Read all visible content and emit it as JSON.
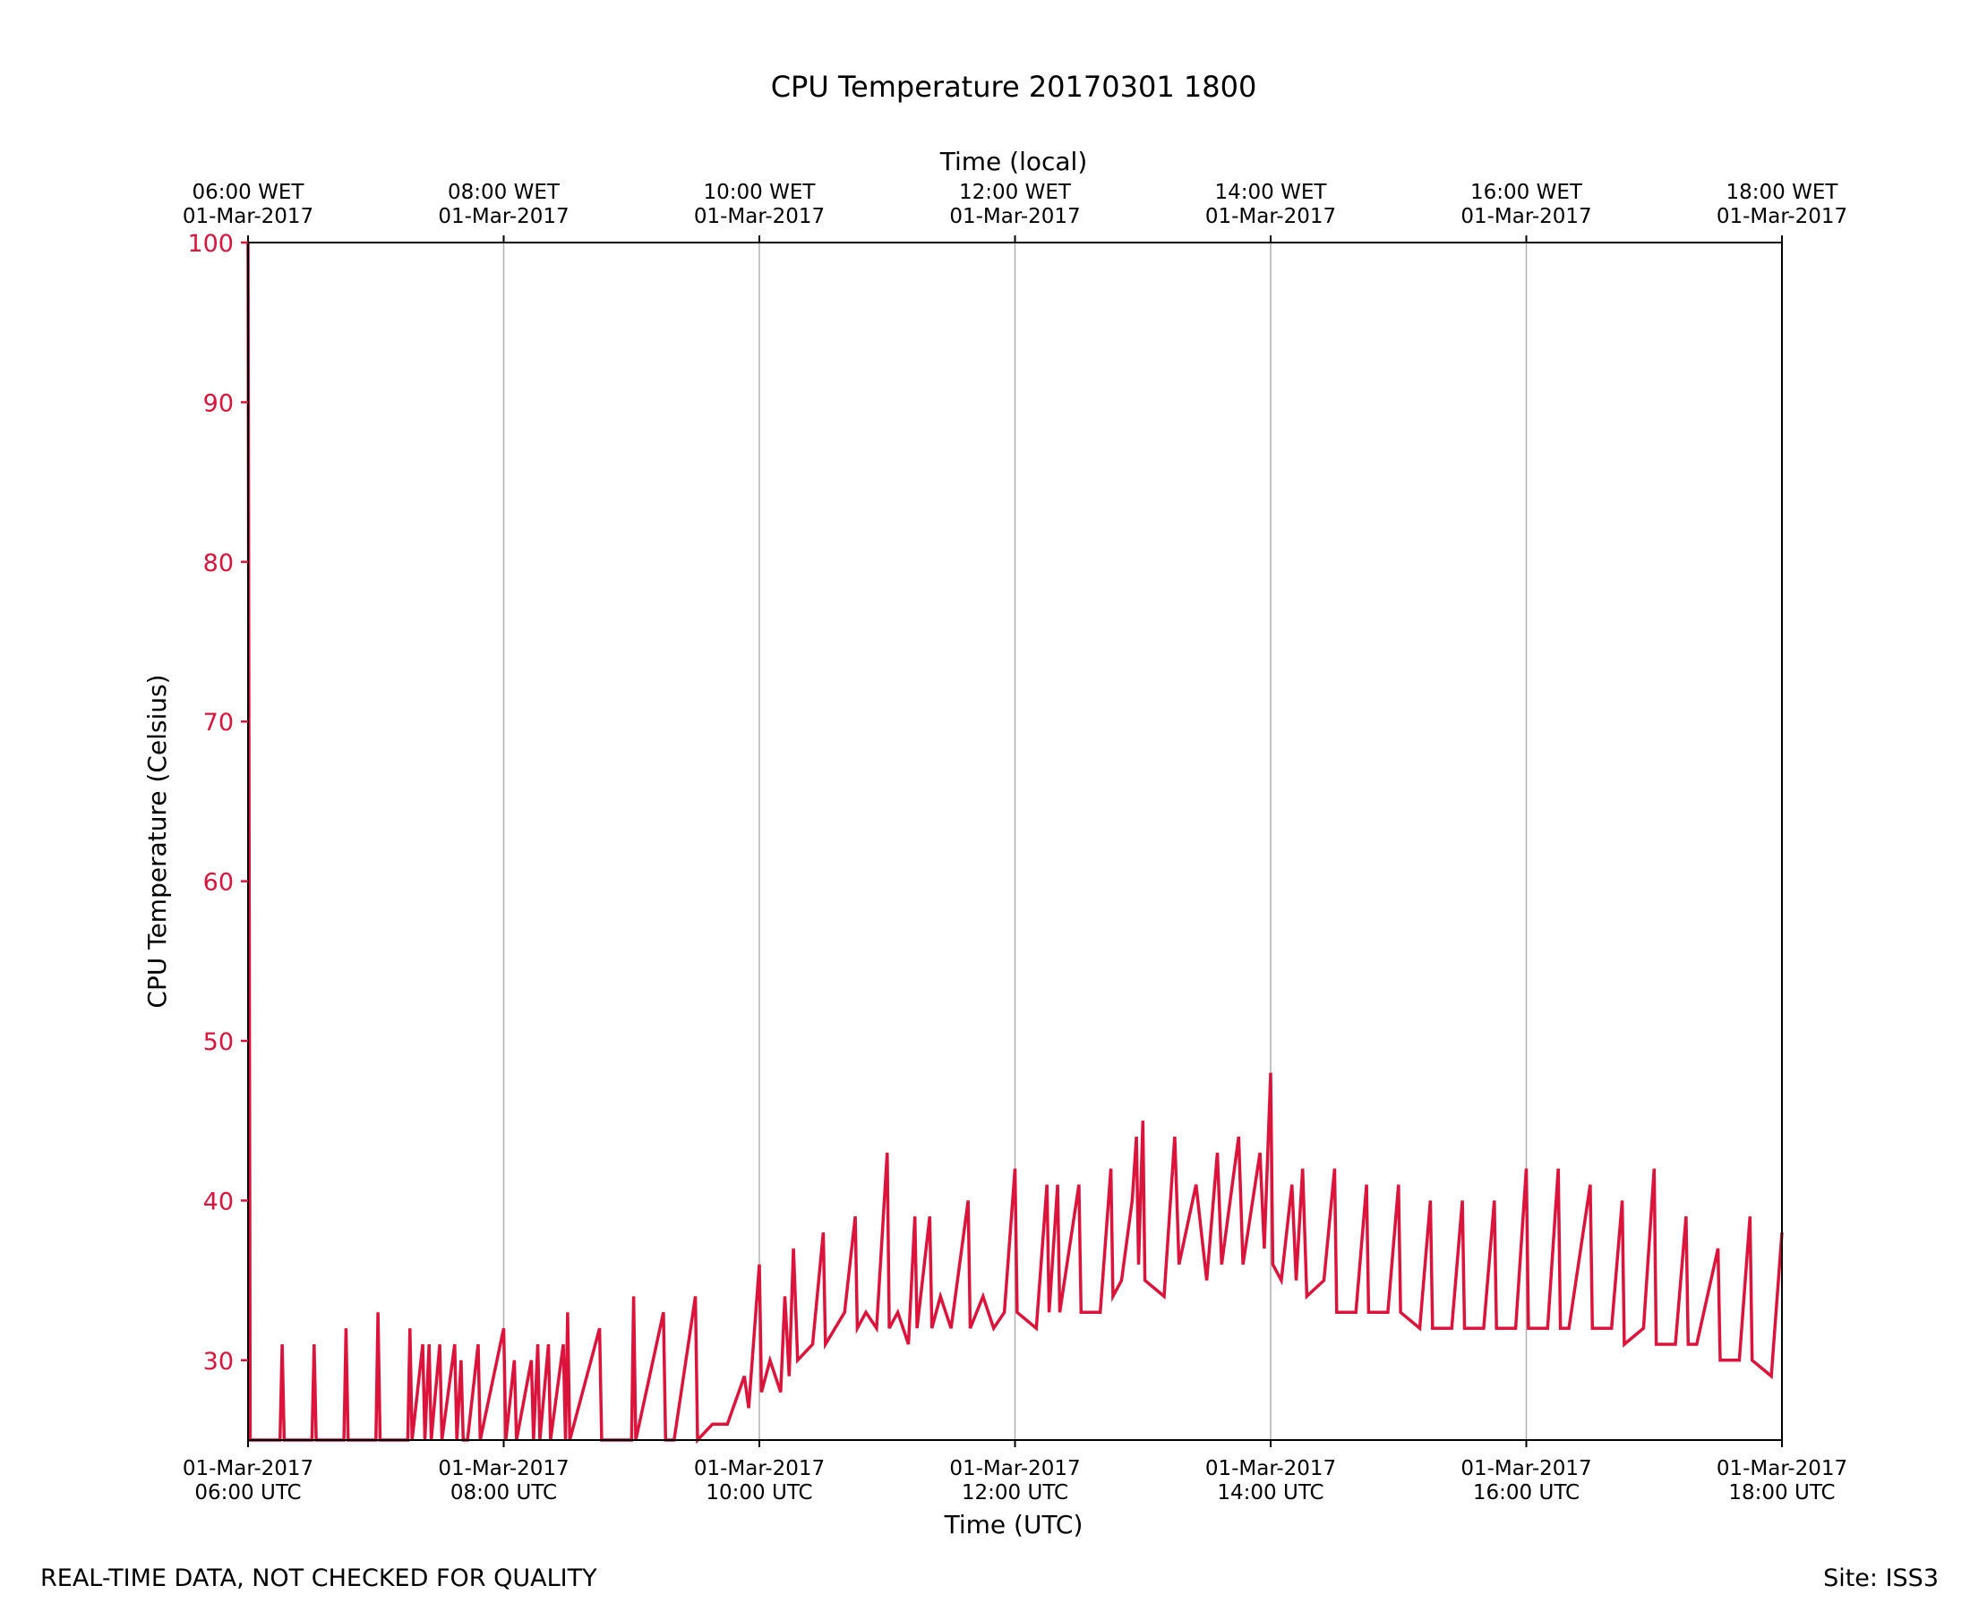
{
  "chart_data": {
    "type": "line",
    "title": "CPU Temperature 20170301 1800",
    "xlabel": "Time (UTC)",
    "x2label": "Time (local)",
    "ylabel": "CPU Temperature (Celsius)",
    "xlim": [
      "2017-03-01 06:00",
      "2017-03-01 18:00"
    ],
    "ylim": [
      25,
      100
    ],
    "yticks": [
      30,
      40,
      50,
      60,
      70,
      80,
      90,
      100
    ],
    "ytick_labels": [
      "30",
      "40",
      "50",
      "60",
      "70",
      "80",
      "90",
      "100"
    ],
    "xticks_bottom": [
      {
        "line1": "01-Mar-2017",
        "line2": "06:00 UTC"
      },
      {
        "line1": "01-Mar-2017",
        "line2": "08:00 UTC"
      },
      {
        "line1": "01-Mar-2017",
        "line2": "10:00 UTC"
      },
      {
        "line1": "01-Mar-2017",
        "line2": "12:00 UTC"
      },
      {
        "line1": "01-Mar-2017",
        "line2": "14:00 UTC"
      },
      {
        "line1": "01-Mar-2017",
        "line2": "16:00 UTC"
      },
      {
        "line1": "01-Mar-2017",
        "line2": "18:00 UTC"
      }
    ],
    "xticks_top": [
      {
        "line1": "06:00 WET",
        "line2": "01-Mar-2017"
      },
      {
        "line1": "08:00 WET",
        "line2": "01-Mar-2017"
      },
      {
        "line1": "10:00 WET",
        "line2": "01-Mar-2017"
      },
      {
        "line1": "12:00 WET",
        "line2": "01-Mar-2017"
      },
      {
        "line1": "14:00 WET",
        "line2": "01-Mar-2017"
      },
      {
        "line1": "16:00 WET",
        "line2": "01-Mar-2017"
      },
      {
        "line1": "18:00 WET",
        "line2": "01-Mar-2017"
      }
    ],
    "grid": "vertical",
    "series": [
      {
        "color": "#dc143c",
        "points": [
          [
            "06:00",
            100
          ],
          [
            "06:01",
            25
          ],
          [
            "06:15",
            25
          ],
          [
            "06:16",
            31
          ],
          [
            "06:17",
            25
          ],
          [
            "06:30",
            25
          ],
          [
            "06:31",
            31
          ],
          [
            "06:32",
            25
          ],
          [
            "06:45",
            25
          ],
          [
            "06:46",
            32
          ],
          [
            "06:47",
            25
          ],
          [
            "07:00",
            25
          ],
          [
            "07:01",
            33
          ],
          [
            "07:02",
            25
          ],
          [
            "07:15",
            25
          ],
          [
            "07:16",
            32
          ],
          [
            "07:17",
            25
          ],
          [
            "07:22",
            31
          ],
          [
            "07:23",
            25
          ],
          [
            "07:25",
            31
          ],
          [
            "07:26",
            25
          ],
          [
            "07:30",
            31
          ],
          [
            "07:31",
            25
          ],
          [
            "07:37",
            31
          ],
          [
            "07:38",
            25
          ],
          [
            "07:40",
            30
          ],
          [
            "07:41",
            25
          ],
          [
            "07:43",
            25
          ],
          [
            "07:48",
            31
          ],
          [
            "07:49",
            25
          ],
          [
            "08:00",
            32
          ],
          [
            "08:01",
            25
          ],
          [
            "08:05",
            30
          ],
          [
            "08:06",
            25
          ],
          [
            "08:13",
            30
          ],
          [
            "08:14",
            25
          ],
          [
            "08:16",
            31
          ],
          [
            "08:17",
            25
          ],
          [
            "08:21",
            31
          ],
          [
            "08:22",
            25
          ],
          [
            "08:28",
            31
          ],
          [
            "08:29",
            25
          ],
          [
            "08:30",
            33
          ],
          [
            "08:31",
            25
          ],
          [
            "08:45",
            32
          ],
          [
            "08:46",
            25
          ],
          [
            "09:00",
            25
          ],
          [
            "09:01",
            34
          ],
          [
            "09:02",
            25
          ],
          [
            "09:15",
            33
          ],
          [
            "09:16",
            25
          ],
          [
            "09:20",
            25
          ],
          [
            "09:30",
            34
          ],
          [
            "09:31",
            25
          ],
          [
            "09:38",
            26
          ],
          [
            "09:45",
            26
          ],
          [
            "09:53",
            29
          ],
          [
            "09:55",
            27
          ],
          [
            "10:00",
            36
          ],
          [
            "10:01",
            28
          ],
          [
            "10:05",
            30
          ],
          [
            "10:10",
            28
          ],
          [
            "10:12",
            34
          ],
          [
            "10:14",
            29
          ],
          [
            "10:16",
            37
          ],
          [
            "10:18",
            30
          ],
          [
            "10:25",
            31
          ],
          [
            "10:30",
            38
          ],
          [
            "10:31",
            31
          ],
          [
            "10:40",
            33
          ],
          [
            "10:45",
            39
          ],
          [
            "10:46",
            32
          ],
          [
            "10:50",
            33
          ],
          [
            "10:55",
            32
          ],
          [
            "11:00",
            43
          ],
          [
            "11:01",
            32
          ],
          [
            "11:05",
            33
          ],
          [
            "11:10",
            31
          ],
          [
            "11:13",
            39
          ],
          [
            "11:14",
            32
          ],
          [
            "11:20",
            39
          ],
          [
            "11:21",
            32
          ],
          [
            "11:25",
            34
          ],
          [
            "11:30",
            32
          ],
          [
            "11:38",
            40
          ],
          [
            "11:39",
            32
          ],
          [
            "11:45",
            34
          ],
          [
            "11:50",
            32
          ],
          [
            "11:55",
            33
          ],
          [
            "12:00",
            42
          ],
          [
            "12:01",
            33
          ],
          [
            "12:10",
            32
          ],
          [
            "12:15",
            41
          ],
          [
            "12:16",
            33
          ],
          [
            "12:20",
            41
          ],
          [
            "12:21",
            33
          ],
          [
            "12:30",
            41
          ],
          [
            "12:31",
            33
          ],
          [
            "12:40",
            33
          ],
          [
            "12:45",
            42
          ],
          [
            "12:46",
            34
          ],
          [
            "12:50",
            35
          ],
          [
            "12:55",
            40
          ],
          [
            "12:57",
            44
          ],
          [
            "12:58",
            36
          ],
          [
            "13:00",
            45
          ],
          [
            "13:01",
            35
          ],
          [
            "13:10",
            34
          ],
          [
            "13:15",
            44
          ],
          [
            "13:17",
            36
          ],
          [
            "13:25",
            41
          ],
          [
            "13:30",
            35
          ],
          [
            "13:35",
            43
          ],
          [
            "13:37",
            36
          ],
          [
            "13:45",
            44
          ],
          [
            "13:47",
            36
          ],
          [
            "13:55",
            43
          ],
          [
            "13:57",
            37
          ],
          [
            "14:00",
            48
          ],
          [
            "14:01",
            36
          ],
          [
            "14:05",
            35
          ],
          [
            "14:10",
            41
          ],
          [
            "14:12",
            35
          ],
          [
            "14:15",
            42
          ],
          [
            "14:17",
            34
          ],
          [
            "14:25",
            35
          ],
          [
            "14:30",
            42
          ],
          [
            "14:31",
            33
          ],
          [
            "14:40",
            33
          ],
          [
            "14:45",
            41
          ],
          [
            "14:46",
            33
          ],
          [
            "14:55",
            33
          ],
          [
            "15:00",
            41
          ],
          [
            "15:01",
            33
          ],
          [
            "15:10",
            32
          ],
          [
            "15:15",
            40
          ],
          [
            "15:16",
            32
          ],
          [
            "15:25",
            32
          ],
          [
            "15:30",
            40
          ],
          [
            "15:31",
            32
          ],
          [
            "15:40",
            32
          ],
          [
            "15:45",
            40
          ],
          [
            "15:46",
            32
          ],
          [
            "15:55",
            32
          ],
          [
            "16:00",
            42
          ],
          [
            "16:01",
            32
          ],
          [
            "16:10",
            32
          ],
          [
            "16:15",
            42
          ],
          [
            "16:16",
            32
          ],
          [
            "16:20",
            32
          ],
          [
            "16:30",
            41
          ],
          [
            "16:31",
            32
          ],
          [
            "16:40",
            32
          ],
          [
            "16:45",
            40
          ],
          [
            "16:46",
            31
          ],
          [
            "16:55",
            32
          ],
          [
            "17:00",
            42
          ],
          [
            "17:01",
            31
          ],
          [
            "17:10",
            31
          ],
          [
            "17:15",
            39
          ],
          [
            "17:16",
            31
          ],
          [
            "17:20",
            31
          ],
          [
            "17:30",
            37
          ],
          [
            "17:31",
            30
          ],
          [
            "17:40",
            30
          ],
          [
            "17:45",
            39
          ],
          [
            "17:46",
            30
          ],
          [
            "17:55",
            29
          ],
          [
            "18:00",
            38
          ]
        ]
      }
    ]
  },
  "footer": {
    "left": "REAL-TIME DATA, NOT CHECKED FOR QUALITY",
    "right": "Site: ISS3"
  },
  "colors": {
    "series": "#dc143c",
    "grid": "#b0b0b0",
    "axis": "#000000"
  }
}
